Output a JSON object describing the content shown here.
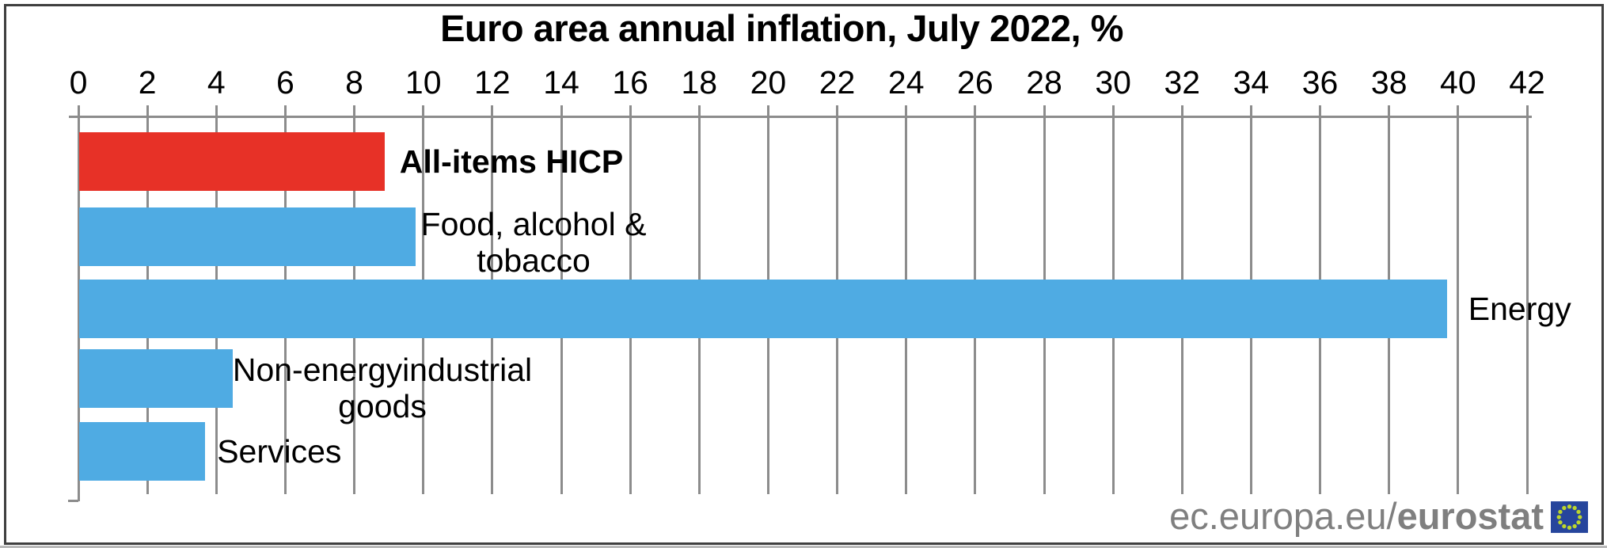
{
  "chart_data": {
    "type": "bar",
    "orientation": "horizontal",
    "title": "Euro area annual inflation, July 2022, %",
    "categories": [
      "All-items HICP",
      "Food, alcohol & tobacco",
      "Energy",
      "Non-energyindustrial goods",
      "Services"
    ],
    "values": [
      8.9,
      9.8,
      39.7,
      4.5,
      3.7
    ],
    "unit": "%",
    "xlim": [
      0,
      42
    ],
    "x_ticks": [
      0,
      2,
      4,
      6,
      8,
      10,
      12,
      14,
      16,
      18,
      20,
      22,
      24,
      26,
      28,
      30,
      32,
      34,
      36,
      38,
      40,
      42
    ],
    "axis_position": "top",
    "grid": true,
    "bar_colors": [
      "#e73127",
      "#4fabe3",
      "#4fabe3",
      "#4fabe3",
      "#4fabe3"
    ],
    "bar_labels": [
      {
        "lines": [
          "All-items HICP"
        ],
        "bold": true
      },
      {
        "lines": [
          "Food, alcohol &",
          "tobacco"
        ],
        "bold": false
      },
      {
        "lines": [
          "Energy"
        ],
        "bold": false
      },
      {
        "lines": [
          "Non-energyindustrial",
          "goods"
        ],
        "bold": false
      },
      {
        "lines": [
          "Services"
        ],
        "bold": false
      }
    ]
  },
  "footer": {
    "site": "ec.europa.eu/",
    "brand": "eurostat"
  },
  "colors": {
    "gridline": "#8c8c8c",
    "bar_highlight": "#e73127",
    "bar_default": "#4fabe3",
    "footer_text": "#7f7f7f",
    "flag_background": "#26459c",
    "flag_stars": "#bdd62c",
    "frame": "#3f3f3f"
  }
}
